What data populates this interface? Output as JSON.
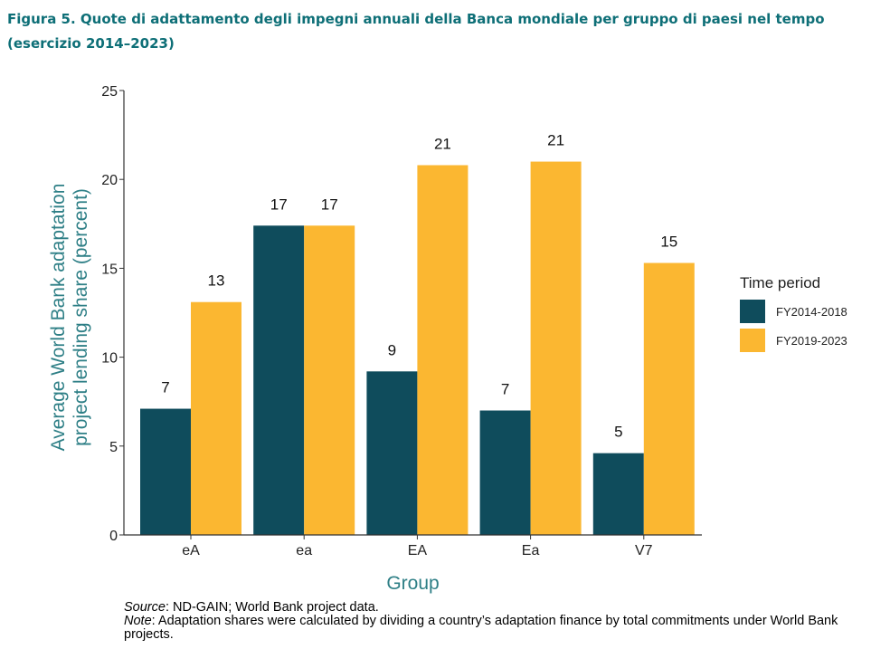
{
  "figure": {
    "title": "Figura 5. Quote di adattamento degli impegni annuali della Banca mondiale per gruppo di paesi nel tempo (esercizio 2014–2023)"
  },
  "chart_data": {
    "type": "bar",
    "categories": [
      "eA",
      "ea",
      "EA",
      "Ea",
      "V7"
    ],
    "series": [
      {
        "name": "FY2014-2018",
        "values": [
          7.1,
          17.4,
          9.2,
          7.0,
          4.6
        ],
        "labels": [
          "7",
          "17",
          "9",
          "7",
          "5"
        ],
        "color": "#0f4c5c"
      },
      {
        "name": "FY2019-2023",
        "values": [
          13.1,
          17.4,
          20.8,
          21.0,
          15.3
        ],
        "labels": [
          "13",
          "17",
          "21",
          "21",
          "15"
        ],
        "color": "#fbb731"
      }
    ],
    "xlabel": "Group",
    "ylabel_lines": [
      "Average World Bank adaptation",
      "project lending share (percent)"
    ],
    "ylim": [
      0,
      25
    ],
    "yticks": [
      0,
      5,
      10,
      15,
      20,
      25
    ],
    "legend_title": "Time period",
    "legend_position": "right",
    "grid": false,
    "axis_label_color": "#2e7f86"
  },
  "notes": {
    "source_label": "Source",
    "source_text": ": ND-GAIN; World Bank project data.",
    "note_label": "Note",
    "note_text": ": Adaptation shares were calculated by dividing a country’s adaptation finance by total commitments under World Bank projects."
  }
}
